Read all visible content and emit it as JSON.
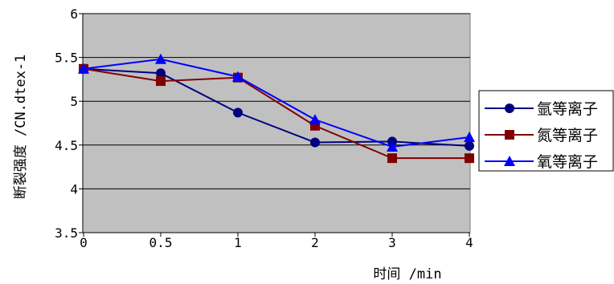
{
  "chart_data": {
    "type": "line",
    "categories": [
      "0",
      "0.5",
      "1",
      "2",
      "3",
      "4"
    ],
    "xlabel": "时间 /min",
    "ylabel": "断裂强度 /CN.dtex-1",
    "ylim": [
      3.5,
      6
    ],
    "yticks": [
      3.5,
      4,
      4.5,
      5,
      5.5,
      6
    ],
    "grid": true,
    "legend": "right",
    "plot_background": "#c0c0c0",
    "series": [
      {
        "name": "氩等离子",
        "marker": "circle",
        "color": "#000080",
        "values": [
          5.37,
          5.32,
          4.87,
          4.53,
          4.54,
          4.49
        ]
      },
      {
        "name": "氮等离子",
        "marker": "square",
        "color": "#800000",
        "values": [
          5.37,
          5.23,
          5.27,
          4.72,
          4.35,
          4.35
        ]
      },
      {
        "name": "氧等离子",
        "marker": "triangle",
        "color": "#0000ff",
        "values": [
          5.37,
          5.48,
          5.28,
          4.79,
          4.48,
          4.59
        ]
      }
    ]
  }
}
